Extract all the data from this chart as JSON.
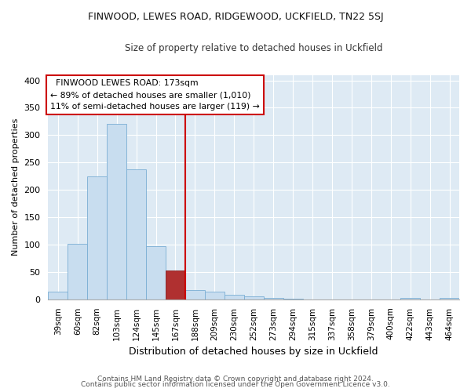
{
  "title": "FINWOOD, LEWES ROAD, RIDGEWOOD, UCKFIELD, TN22 5SJ",
  "subtitle": "Size of property relative to detached houses in Uckfield",
  "xlabel": "Distribution of detached houses by size in Uckfield",
  "ylabel": "Number of detached properties",
  "bar_labels": [
    "39sqm",
    "60sqm",
    "82sqm",
    "103sqm",
    "124sqm",
    "145sqm",
    "167sqm",
    "188sqm",
    "209sqm",
    "230sqm",
    "252sqm",
    "273sqm",
    "294sqm",
    "315sqm",
    "337sqm",
    "358sqm",
    "379sqm",
    "400sqm",
    "422sqm",
    "443sqm",
    "464sqm"
  ],
  "bar_values": [
    14,
    102,
    225,
    320,
    238,
    97,
    53,
    17,
    14,
    9,
    5,
    2,
    1,
    0,
    0,
    0,
    0,
    0,
    2,
    0,
    2
  ],
  "bar_color": "#c8ddef",
  "bar_edge_color": "#7aaed4",
  "highlight_bar_index": 6,
  "highlight_bar_color": "#b03030",
  "highlight_bar_edge_color": "#8a2020",
  "vline_color": "#cc0000",
  "annotation_title": "FINWOOD LEWES ROAD: 173sqm",
  "annotation_line1": "← 89% of detached houses are smaller (1,010)",
  "annotation_line2": "11% of semi-detached houses are larger (119) →",
  "annotation_box_color": "#ffffff",
  "annotation_box_edge": "#cc0000",
  "ylim": [
    0,
    410
  ],
  "yticks": [
    0,
    50,
    100,
    150,
    200,
    250,
    300,
    350,
    400
  ],
  "footer1": "Contains HM Land Registry data © Crown copyright and database right 2024.",
  "footer2": "Contains public sector information licensed under the Open Government Licence v3.0.",
  "background_color": "#ffffff",
  "plot_bg_color": "#deeaf4",
  "grid_color": "#ffffff"
}
